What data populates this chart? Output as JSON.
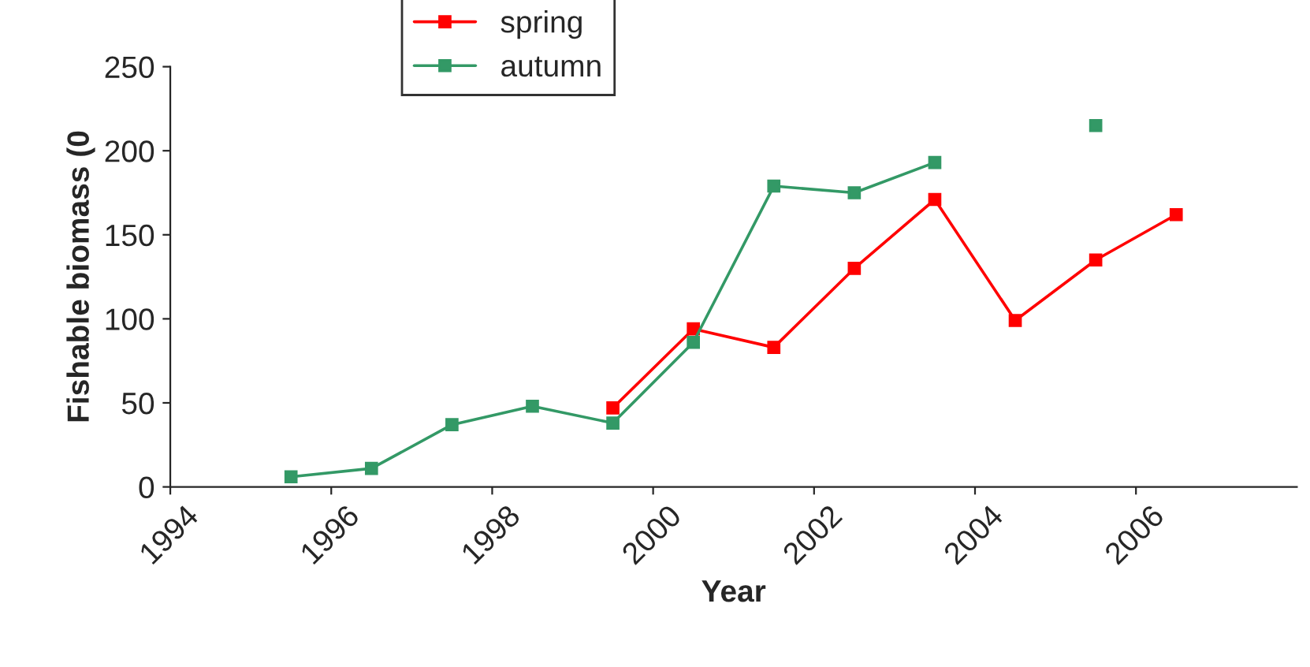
{
  "chart_data": {
    "type": "line",
    "xlabel": "Year",
    "ylabel": "Fishable biomass (0",
    "x": [
      1995.5,
      1996.5,
      1997.5,
      1998.5,
      1999.5,
      2000.5,
      2001.5,
      2002.5,
      2003.5,
      2004.5,
      2005.5,
      2006.5
    ],
    "series": [
      {
        "name": "spring",
        "color": "#ff0000",
        "values": [
          null,
          null,
          null,
          null,
          47,
          94,
          83,
          130,
          171,
          99,
          135,
          162
        ]
      },
      {
        "name": "autumn",
        "color": "#339966",
        "values": [
          6,
          11,
          37,
          48,
          38,
          86,
          179,
          175,
          193,
          null,
          215,
          null
        ]
      }
    ],
    "xlim": [
      1994,
      2008
    ],
    "xticks": [
      1994,
      1996,
      1998,
      2000,
      2002,
      2004,
      2006
    ],
    "ylim": [
      0,
      250
    ],
    "yticks": [
      0,
      50,
      100,
      150,
      200,
      250
    ],
    "marker": "square",
    "line_style": "solid",
    "grid": false,
    "legend": "top"
  }
}
